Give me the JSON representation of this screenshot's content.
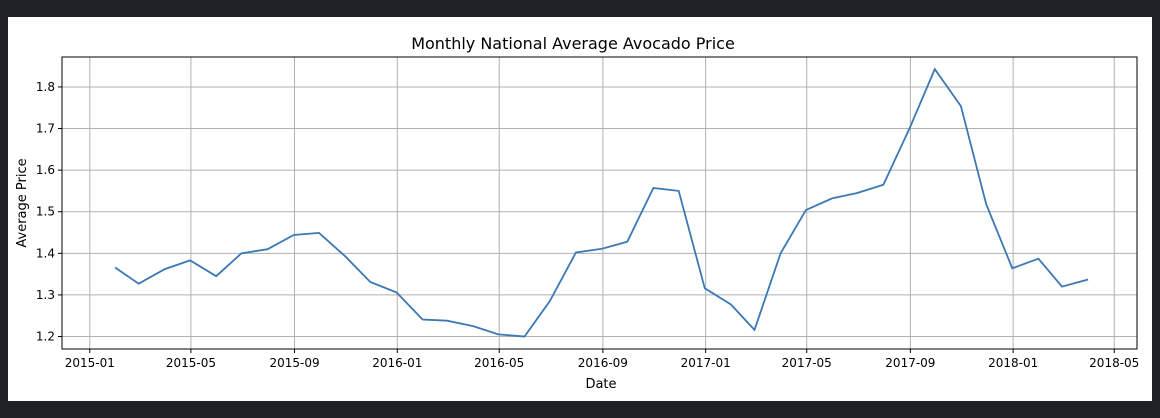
{
  "chart_data": {
    "type": "line",
    "title": "Monthly National Average Avocado Price",
    "xlabel": "Date",
    "ylabel": "Average Price",
    "grid": true,
    "line_color": "#3b78b4",
    "xlim": [
      "2014-11-29",
      "2018-05-28"
    ],
    "ylim": [
      1.17,
      1.872
    ],
    "x_ticks": [
      "2015-01",
      "2015-05",
      "2015-09",
      "2016-01",
      "2016-05",
      "2016-09",
      "2017-01",
      "2017-05",
      "2017-09",
      "2018-01",
      "2018-05"
    ],
    "y_ticks": [
      "1.2",
      "1.3",
      "1.4",
      "1.5",
      "1.6",
      "1.7",
      "1.8"
    ],
    "series": [
      {
        "x": [
          "2015-01-31",
          "2015-02-28",
          "2015-03-31",
          "2015-04-30",
          "2015-05-31",
          "2015-06-30",
          "2015-07-31",
          "2015-08-31",
          "2015-09-30",
          "2015-10-31",
          "2015-11-30",
          "2015-12-31",
          "2016-01-31",
          "2016-02-29",
          "2016-03-31",
          "2016-04-30",
          "2016-05-31",
          "2016-06-30",
          "2016-07-31",
          "2016-08-31",
          "2016-09-30",
          "2016-10-31",
          "2016-11-30",
          "2016-12-31",
          "2017-01-31",
          "2017-02-28",
          "2017-03-31",
          "2017-04-30",
          "2017-05-31",
          "2017-06-30",
          "2017-07-31",
          "2017-08-31",
          "2017-09-30",
          "2017-10-31",
          "2017-11-30",
          "2017-12-31",
          "2018-01-31",
          "2018-02-28",
          "2018-03-31"
        ],
        "y": [
          1.366,
          1.327,
          1.362,
          1.383,
          1.345,
          1.4,
          1.41,
          1.444,
          1.449,
          1.393,
          1.331,
          1.306,
          1.241,
          1.238,
          1.225,
          1.205,
          1.2,
          1.285,
          1.402,
          1.411,
          1.428,
          1.557,
          1.55,
          1.316,
          1.277,
          1.216,
          1.4,
          1.504,
          1.532,
          1.545,
          1.565,
          1.7,
          1.843,
          1.754,
          1.518,
          1.364,
          1.387,
          1.32,
          1.337
        ]
      }
    ]
  }
}
